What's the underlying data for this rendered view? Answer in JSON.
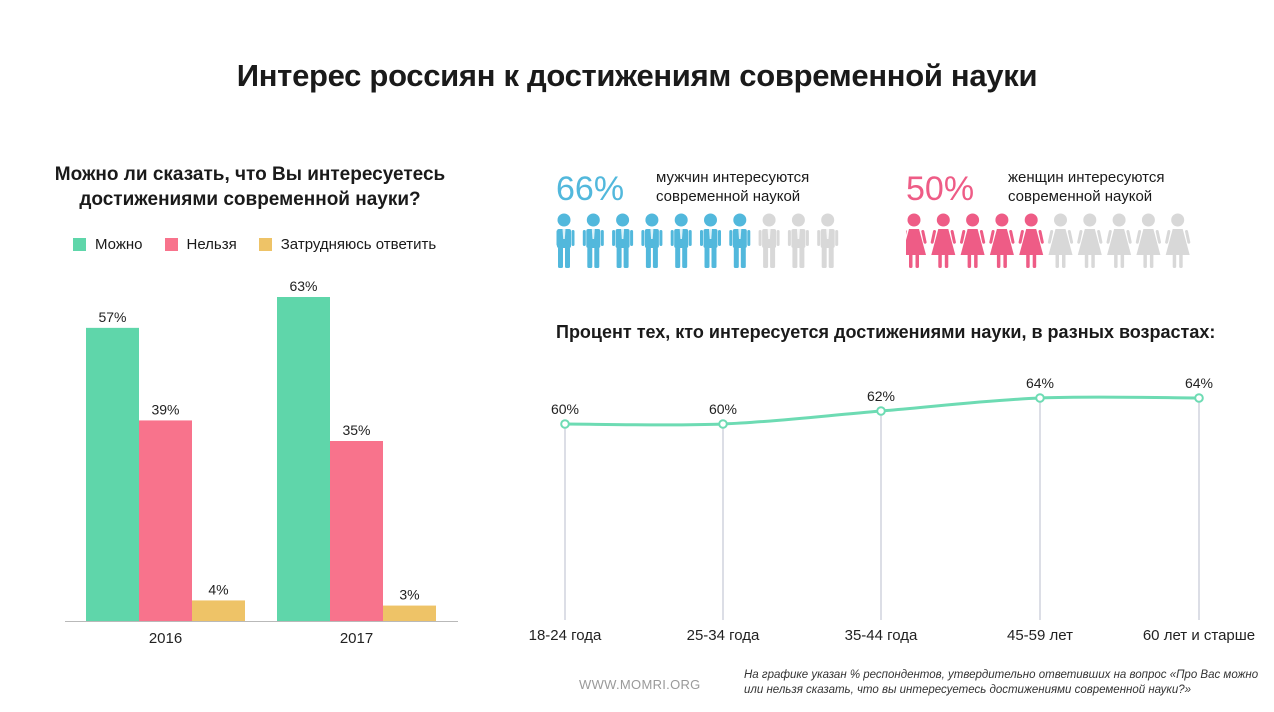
{
  "title": "Интерес россиян к достижениям современной науки",
  "colors": {
    "yes": "#5fd6aa",
    "no": "#f8738c",
    "unsure": "#eec367",
    "men": "#52b8dc",
    "women": "#ee5c86",
    "inactive": "#d8d8d8",
    "line": "#6ddbb3"
  },
  "bar_section": {
    "question_line1": "Можно ли сказать, что Вы интересуетесь",
    "question_line2": "достижениями современной науки?",
    "legend": [
      "Можно",
      "Нельзя",
      "Затрудняюсь ответить"
    ]
  },
  "stats": {
    "men": {
      "pct": "66%",
      "line1": "мужчин интересуются",
      "line2": "современной наукой",
      "icon": "man-icon",
      "filled": 7,
      "total": 10
    },
    "women": {
      "pct": "50%",
      "line1": "женщин интересуются",
      "line2": "современной наукой",
      "icon": "woman-icon",
      "filled": 5,
      "total": 10
    }
  },
  "line_section": {
    "title": "Процент тех, кто интересуется достижениями науки, в разных возрастах:"
  },
  "footer": {
    "url": "WWW.MOMRI.ORG",
    "note": "На графике указан % респондентов, утвердительно ответивших на вопрос «Про Вас можно или нельзя сказать, что вы интересуетесь достижениями современной науки?»"
  },
  "chart_data": [
    {
      "type": "bar",
      "title": "Можно ли сказать, что Вы интересуетесь достижениями современной науки?",
      "categories": [
        "2016",
        "2017"
      ],
      "series": [
        {
          "name": "Можно",
          "values": [
            57,
            63
          ],
          "labels": [
            "57%",
            "63%"
          ]
        },
        {
          "name": "Нельзя",
          "values": [
            39,
            35
          ],
          "labels": [
            "39%",
            "35%"
          ]
        },
        {
          "name": "Затрудняюсь ответить",
          "values": [
            4,
            3
          ],
          "labels": [
            "4%",
            "3%"
          ]
        }
      ],
      "ylim": [
        0,
        63
      ],
      "grid": false
    },
    {
      "type": "line",
      "title": "Процент тех, кто интересуется достижениями науки, в разных возрастах:",
      "categories": [
        "18-24 года",
        "25-34 года",
        "35-44 года",
        "45-59 лет",
        "60 лет и старше"
      ],
      "values": [
        60,
        60,
        62,
        64,
        64
      ],
      "labels": [
        "60%",
        "60%",
        "62%",
        "64%",
        "64%"
      ],
      "ylim": [
        0,
        64
      ],
      "grid": false
    }
  ]
}
